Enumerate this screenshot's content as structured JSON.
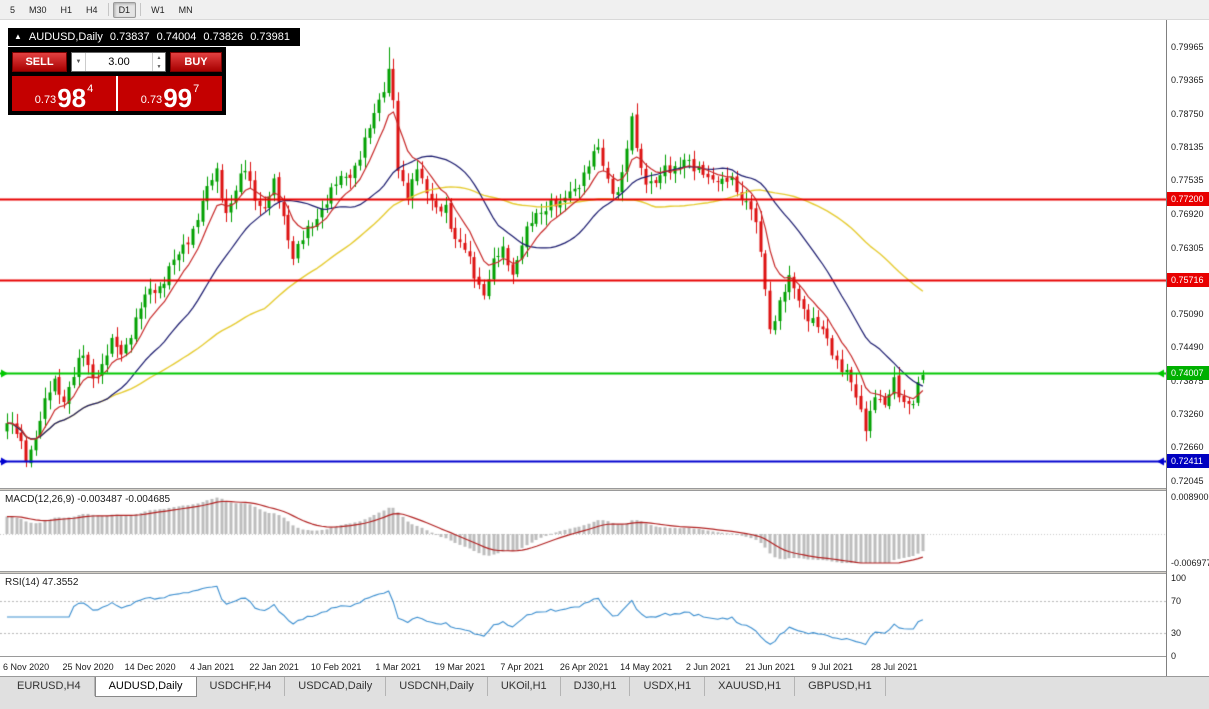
{
  "toolbar": {
    "timeframes": [
      {
        "label": "5",
        "active": false
      },
      {
        "label": "M30",
        "active": false
      },
      {
        "label": "H1",
        "active": false
      },
      {
        "label": "H4",
        "active": false
      },
      {
        "label": "D1",
        "active": true
      },
      {
        "label": "W1",
        "active": false
      },
      {
        "label": "MN",
        "active": false
      }
    ]
  },
  "icons": {
    "triangle_up": "▲",
    "dropdown": "▼",
    "spin_up": "▲",
    "spin_down": "▼"
  },
  "chart": {
    "symbol_line": {
      "symbol": "AUDUSD,Daily",
      "open": "0.73837",
      "high": "0.74004",
      "low": "0.73826",
      "close": "0.73981"
    },
    "one_click": {
      "sell_label": "SELL",
      "buy_label": "BUY",
      "lots": "3.00",
      "sell_price": {
        "small": "0.73",
        "big": "98",
        "sup": "4"
      },
      "buy_price": {
        "small": "0.73",
        "big": "99",
        "sup": "7"
      }
    },
    "axis_labels": [
      {
        "label": "0.79965",
        "price": 0.79965
      },
      {
        "label": "0.79365",
        "price": 0.79365
      },
      {
        "label": "0.78750",
        "price": 0.7875
      },
      {
        "label": "0.78135",
        "price": 0.78135
      },
      {
        "label": "0.77535",
        "price": 0.77535
      },
      {
        "label": "0.76920",
        "price": 0.7692
      },
      {
        "label": "0.76305",
        "price": 0.76305
      },
      {
        "label": "0.75690",
        "price": 0.7569
      },
      {
        "label": "0.75090",
        "price": 0.7509
      },
      {
        "label": "0.74490",
        "price": 0.7449
      },
      {
        "label": "0.73875",
        "price": 0.73875
      },
      {
        "label": "0.73260",
        "price": 0.7326
      },
      {
        "label": "0.72660",
        "price": 0.7266
      },
      {
        "label": "0.72045",
        "price": 0.72045
      }
    ],
    "hlines": [
      {
        "price": 0.772,
        "label": "0.77200",
        "color": "#e80000",
        "badge": "#e80000",
        "arrows": false
      },
      {
        "price": 0.75716,
        "label": "0.75716",
        "color": "#e80000",
        "badge": "#e80000",
        "arrows": false
      },
      {
        "price": 0.74007,
        "label": "0.74007",
        "color": "#00c800",
        "badge": "#00b000",
        "arrows": true
      },
      {
        "price": 0.72411,
        "label": "0.72411",
        "color": "#0000d0",
        "badge": "#0000c0",
        "arrows": true
      }
    ],
    "dates": [
      {
        "label": "6 Nov 2020",
        "bar": 4
      },
      {
        "label": "25 Nov 2020",
        "bar": 17
      },
      {
        "label": "14 Dec 2020",
        "bar": 30
      },
      {
        "label": "4 Jan 2021",
        "bar": 43
      },
      {
        "label": "22 Jan 2021",
        "bar": 56
      },
      {
        "label": "10 Feb 2021",
        "bar": 69
      },
      {
        "label": "1 Mar 2021",
        "bar": 82
      },
      {
        "label": "19 Mar 2021",
        "bar": 95
      },
      {
        "label": "7 Apr 2021",
        "bar": 108
      },
      {
        "label": "26 Apr 2021",
        "bar": 121
      },
      {
        "label": "14 May 2021",
        "bar": 134
      },
      {
        "label": "2 Jun 2021",
        "bar": 147
      },
      {
        "label": "21 Jun 2021",
        "bar": 160
      },
      {
        "label": "9 Jul 2021",
        "bar": 173
      },
      {
        "label": "28 Jul 2021",
        "bar": 186
      }
    ],
    "macd_header": "MACD(12,26,9) -0.003487 -0.004685",
    "macd_axis": [
      {
        "label": "0.008900",
        "v": 0.0089
      },
      {
        "label": "-0.006977",
        "v": -0.006977
      }
    ],
    "rsi_header": "RSI(14) 47.3552",
    "rsi_axis": [
      {
        "label": "100",
        "v": 100
      },
      {
        "label": "70",
        "v": 70
      },
      {
        "label": "30",
        "v": 30
      },
      {
        "label": "0",
        "v": 0
      }
    ]
  },
  "chart_data": {
    "type": "candlestick",
    "symbol": "AUDUSD",
    "timeframe": "Daily",
    "bars_total": 193,
    "ohlc_display": {
      "open": 0.73837,
      "high": 0.74004,
      "low": 0.73826,
      "close": 0.73981
    },
    "price_anchors": [
      [
        0,
        0.731
      ],
      [
        2,
        0.7285
      ],
      [
        4,
        0.725
      ],
      [
        6,
        0.729
      ],
      [
        8,
        0.734
      ],
      [
        10,
        0.7385
      ],
      [
        12,
        0.736
      ],
      [
        14,
        0.7395
      ],
      [
        16,
        0.743
      ],
      [
        18,
        0.74
      ],
      [
        20,
        0.7415
      ],
      [
        22,
        0.745
      ],
      [
        24,
        0.744
      ],
      [
        26,
        0.748
      ],
      [
        28,
        0.7515
      ],
      [
        30,
        0.755
      ],
      [
        32,
        0.7565
      ],
      [
        34,
        0.759
      ],
      [
        36,
        0.761
      ],
      [
        38,
        0.765
      ],
      [
        40,
        0.769
      ],
      [
        42,
        0.773
      ],
      [
        44,
        0.777
      ],
      [
        46,
        0.77
      ],
      [
        48,
        0.773
      ],
      [
        50,
        0.777
      ],
      [
        52,
        0.773
      ],
      [
        54,
        0.77
      ],
      [
        56,
        0.774
      ],
      [
        58,
        0.769
      ],
      [
        60,
        0.762
      ],
      [
        62,
        0.764
      ],
      [
        64,
        0.767
      ],
      [
        66,
        0.771
      ],
      [
        68,
        0.773
      ],
      [
        70,
        0.775
      ],
      [
        72,
        0.777
      ],
      [
        74,
        0.78
      ],
      [
        76,
        0.784
      ],
      [
        78,
        0.79
      ],
      [
        80,
        0.796
      ],
      [
        81,
        0.7905
      ],
      [
        82,
        0.776
      ],
      [
        84,
        0.772
      ],
      [
        86,
        0.779
      ],
      [
        88,
        0.773
      ],
      [
        90,
        0.769
      ],
      [
        92,
        0.771
      ],
      [
        94,
        0.765
      ],
      [
        96,
        0.762
      ],
      [
        98,
        0.758
      ],
      [
        100,
        0.7555
      ],
      [
        102,
        0.76
      ],
      [
        104,
        0.762
      ],
      [
        106,
        0.759
      ],
      [
        108,
        0.764
      ],
      [
        110,
        0.767
      ],
      [
        112,
        0.77
      ],
      [
        114,
        0.772
      ],
      [
        116,
        0.77
      ],
      [
        118,
        0.773
      ],
      [
        120,
        0.7755
      ],
      [
        122,
        0.778
      ],
      [
        124,
        0.7805
      ],
      [
        126,
        0.776
      ],
      [
        128,
        0.773
      ],
      [
        130,
        0.78
      ],
      [
        131,
        0.786
      ],
      [
        132,
        0.782
      ],
      [
        133,
        0.778
      ],
      [
        134,
        0.776
      ],
      [
        136,
        0.774
      ],
      [
        138,
        0.777
      ],
      [
        140,
        0.7785
      ],
      [
        142,
        0.779
      ],
      [
        144,
        0.7765
      ],
      [
        146,
        0.7775
      ],
      [
        148,
        0.776
      ],
      [
        150,
        0.774
      ],
      [
        152,
        0.7755
      ],
      [
        154,
        0.773
      ],
      [
        156,
        0.77
      ],
      [
        158,
        0.762
      ],
      [
        160,
        0.749
      ],
      [
        162,
        0.753
      ],
      [
        164,
        0.7565
      ],
      [
        166,
        0.754
      ],
      [
        168,
        0.751
      ],
      [
        170,
        0.748
      ],
      [
        172,
        0.746
      ],
      [
        174,
        0.743
      ],
      [
        176,
        0.74
      ],
      [
        178,
        0.735
      ],
      [
        180,
        0.731
      ],
      [
        182,
        0.7365
      ],
      [
        184,
        0.733
      ],
      [
        186,
        0.739
      ],
      [
        188,
        0.7355
      ],
      [
        190,
        0.734
      ],
      [
        192,
        0.73981
      ]
    ],
    "extreme_high": {
      "bar": 80,
      "price": 0.7996
    },
    "extreme_low": {
      "bar": 180,
      "price": 0.7292
    },
    "levels": {
      "resistance_upper": 0.772,
      "resistance_lower": 0.75716,
      "current_level_line": 0.74007,
      "support": 0.72411
    },
    "indicators": {
      "moving_averages": [
        {
          "period": 8,
          "type": "ema",
          "color": "#c82828"
        },
        {
          "period": 22,
          "type": "sma",
          "color": "#1a1a6e"
        },
        {
          "period": 55,
          "type": "sma",
          "color": "#e6cc33"
        }
      ],
      "macd": {
        "fast": 12,
        "slow": 26,
        "signal": 9,
        "main_value": -0.003487,
        "signal_value": -0.004685,
        "hist_color": "#bdbdbd",
        "signal_color": "#b22222",
        "ylim": [
          -0.006977,
          0.0089
        ]
      },
      "rsi": {
        "period": 14,
        "value": 47.3552,
        "color": "#3c8fd0",
        "levels": [
          70,
          30
        ],
        "ylim": [
          0,
          100
        ]
      }
    },
    "candle_colors": {
      "up": "#00a000",
      "down": "#dd1111"
    }
  },
  "tabs": [
    {
      "label": "EURUSD,H4",
      "active": false
    },
    {
      "label": "AUDUSD,Daily",
      "active": true
    },
    {
      "label": "USDCHF,H4",
      "active": false
    },
    {
      "label": "USDCAD,Daily",
      "active": false
    },
    {
      "label": "USDCNH,Daily",
      "active": false
    },
    {
      "label": "UKOil,H1",
      "active": false
    },
    {
      "label": "DJ30,H1",
      "active": false
    },
    {
      "label": "USDX,H1",
      "active": false
    },
    {
      "label": "XAUUSD,H1",
      "active": false
    },
    {
      "label": "GBPUSD,H1",
      "active": false
    }
  ]
}
